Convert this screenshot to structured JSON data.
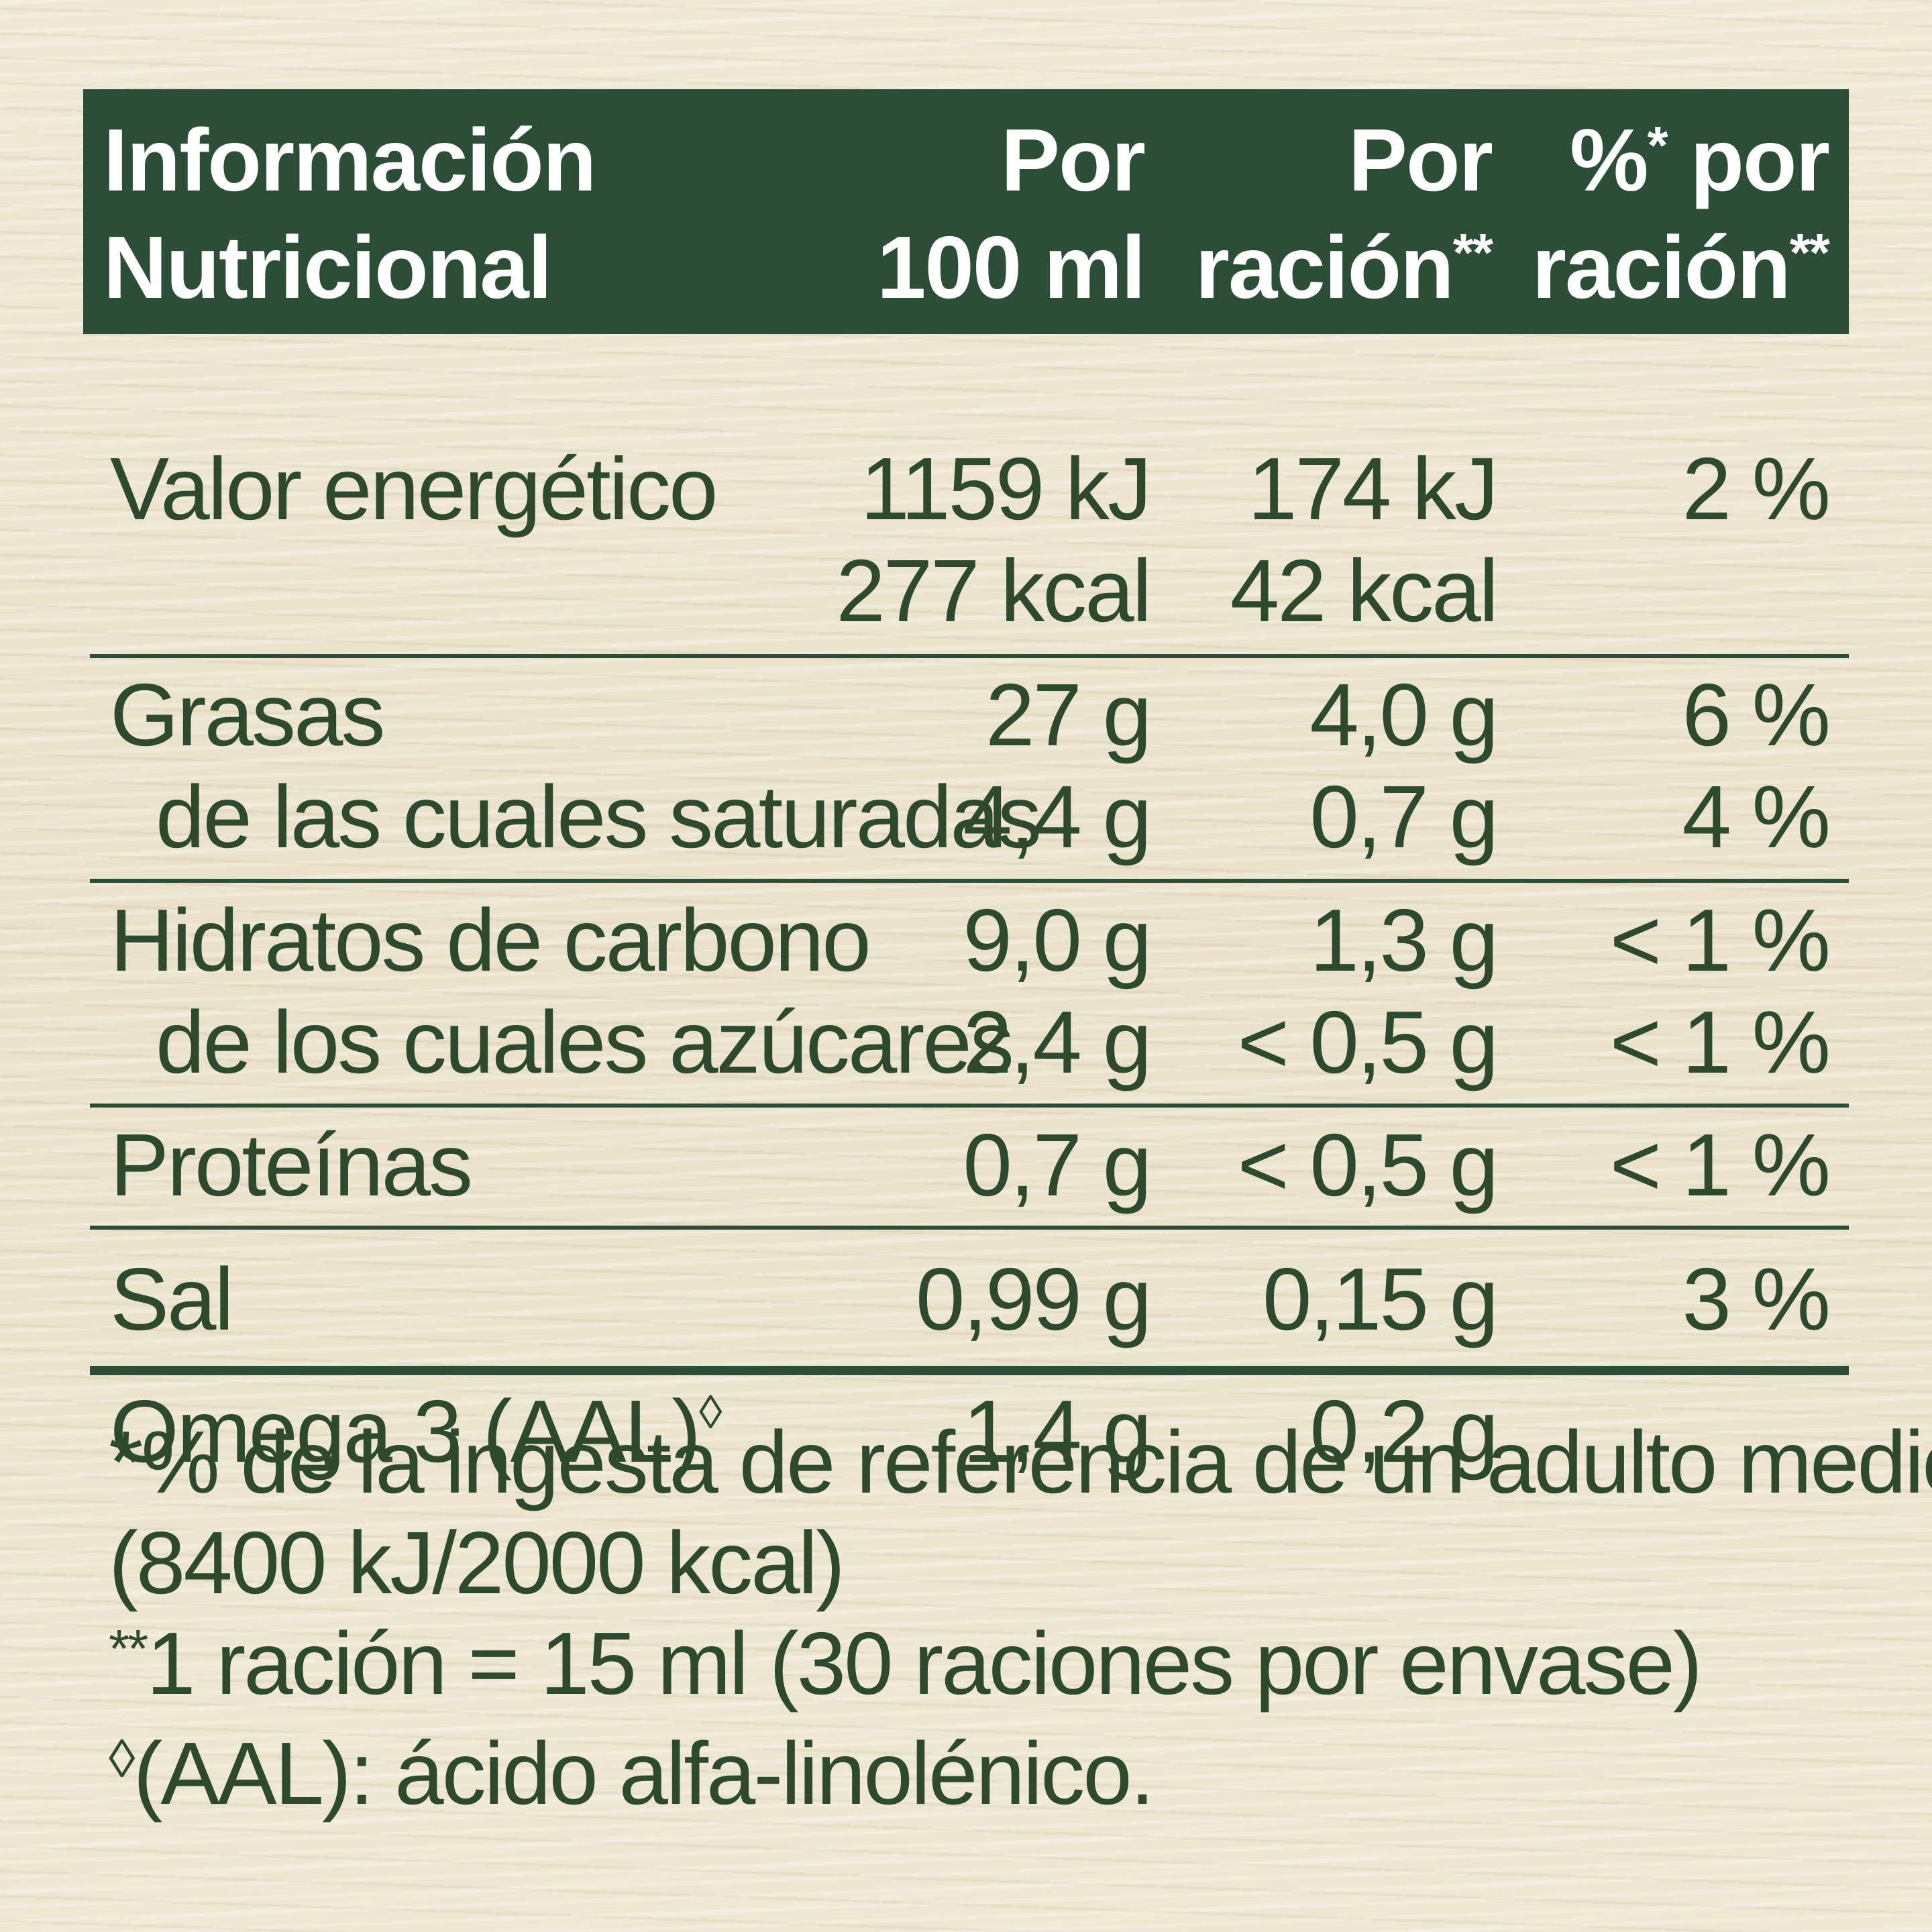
{
  "header": {
    "nutrition_line1": "Información",
    "nutrition_line2": "Nutricional",
    "per100_line1": "Por",
    "per100_line2": "100 ml",
    "perserving_line1": "Por",
    "perserving_line2": "ración",
    "perserving_sup": "**",
    "pct_line1": "%",
    "pct_sup1": "*",
    "pct_line1_rest": " por",
    "pct_line2": "ración",
    "pct_sup2": "**"
  },
  "rows": {
    "energy": {
      "name": "Valor energético",
      "per100_kj": "1159 kJ",
      "per100_kcal": "277 kcal",
      "serving_kj": "174 kJ",
      "serving_kcal": "42 kcal",
      "pct": "2 %"
    },
    "fat": {
      "name": "Grasas",
      "per100": "27 g",
      "serving": "4,0 g",
      "pct": "6 %"
    },
    "saturated": {
      "name": "de las cuales saturadas",
      "per100": "4,4 g",
      "serving": "0,7 g",
      "pct": "4 %"
    },
    "carbs": {
      "name": "Hidratos de carbono",
      "per100": "9,0 g",
      "serving": "1,3 g",
      "pct": "< 1 %"
    },
    "sugars": {
      "name": "de los cuales azúcares",
      "per100": "2,4 g",
      "serving": "< 0,5 g",
      "pct": "< 1 %"
    },
    "protein": {
      "name": "Proteínas",
      "per100": "0,7 g",
      "serving": "< 0,5 g",
      "pct": "< 1 %"
    },
    "salt": {
      "name": "Sal",
      "per100": "0,99 g",
      "serving": "0,15 g",
      "pct": "3 %"
    },
    "omega3": {
      "name": "Omega 3 (AAL)",
      "name_sup": "◊",
      "per100": "1,4 g",
      "serving": "0,2 g"
    }
  },
  "notes": {
    "note1_mark": "*",
    "note1_line1": "% de la ingesta de referencia de un adulto medio",
    "note1_line2": "(8400 kJ/2000 kcal)",
    "note2_mark": "**",
    "note2": "1 ración = 15 ml (30 raciones por envase)",
    "note3_mark": "◊",
    "note3": "(AAL): ácido alfa-linolénico."
  },
  "colors": {
    "header_bg": "#2c4d36",
    "text": "#2d4a2f",
    "background": "#eee7d2"
  }
}
